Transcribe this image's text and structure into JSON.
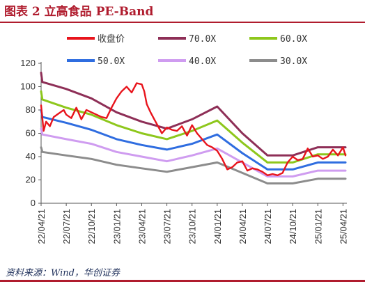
{
  "header": {
    "title": "图表 2 立高食品 PE-Band"
  },
  "footer": {
    "source": "资料来源：Wind，华创证券"
  },
  "colors": {
    "title_red": "#b01c2e",
    "price": "#e8141c",
    "pe70": "#8e2f57",
    "pe60": "#8ec71c",
    "pe50": "#2f6de0",
    "pe40": "#cf9cf0",
    "pe30": "#8c8c8c"
  },
  "chart_data": {
    "type": "line",
    "ylim": [
      0,
      120
    ],
    "yticks": [
      0,
      20,
      40,
      60,
      80,
      100,
      120
    ],
    "xtick_labels": [
      "22/04/21",
      "22/07/21",
      "22/10/21",
      "23/01/21",
      "23/04/21",
      "23/07/21",
      "23/10/21",
      "24/01/21",
      "24/04/21",
      "24/07/21",
      "24/10/21",
      "25/01/21",
      "25/04/21"
    ],
    "x_range": [
      0,
      12.1
    ],
    "legend_position": "top",
    "series": [
      {
        "name": "收盘价",
        "color": "#e8141c",
        "width": 2.4,
        "x": [
          0,
          0.1,
          0.2,
          0.35,
          0.5,
          0.7,
          0.9,
          1.0,
          1.2,
          1.4,
          1.6,
          1.8,
          2.0,
          2.2,
          2.4,
          2.6,
          2.8,
          3.0,
          3.2,
          3.4,
          3.6,
          3.8,
          4.0,
          4.1,
          4.2,
          4.35,
          4.5,
          4.6,
          4.8,
          5.0,
          5.2,
          5.4,
          5.6,
          5.8,
          6.0,
          6.2,
          6.4,
          6.6,
          6.8,
          7.0,
          7.2,
          7.4,
          7.6,
          7.8,
          8.0,
          8.2,
          8.4,
          8.6,
          8.8,
          9.0,
          9.2,
          9.4,
          9.6,
          9.8,
          10.0,
          10.2,
          10.4,
          10.6,
          10.8,
          11.0,
          11.2,
          11.4,
          11.6,
          11.8,
          12.0,
          12.1
        ],
        "y": [
          84,
          62,
          70,
          66,
          74,
          77,
          80,
          76,
          73,
          82,
          72,
          80,
          78,
          76,
          74,
          73,
          82,
          90,
          96,
          100,
          95,
          103,
          102,
          96,
          85,
          78,
          72,
          68,
          60,
          65,
          63,
          62,
          66,
          58,
          67,
          60,
          55,
          50,
          48,
          45,
          38,
          29,
          31,
          35,
          36,
          28,
          30,
          29,
          27,
          24,
          25,
          24,
          26,
          35,
          40,
          37,
          38,
          47,
          40,
          41,
          38,
          40,
          46,
          41,
          48,
          41
        ]
      },
      {
        "name": "70.0X",
        "color": "#8e2f57",
        "width": 3,
        "x": [
          0,
          0.05,
          1.0,
          2.0,
          3.0,
          4.0,
          5.0,
          6.0,
          7.0,
          8.0,
          9.0,
          10.0,
          11.0,
          12.1
        ],
        "y": [
          112,
          104,
          98,
          90,
          78,
          70,
          64,
          72,
          83,
          60,
          41,
          41,
          48,
          48
        ]
      },
      {
        "name": "60.0X",
        "color": "#8ec71c",
        "width": 3,
        "x": [
          0,
          0.05,
          1.0,
          2.0,
          3.0,
          4.0,
          5.0,
          6.0,
          7.0,
          8.0,
          9.0,
          10.0,
          11.0,
          12.1
        ],
        "y": [
          96,
          89,
          82,
          76,
          67,
          60,
          55,
          62,
          71,
          52,
          35,
          35,
          42,
          42
        ]
      },
      {
        "name": "50.0X",
        "color": "#2f6de0",
        "width": 3,
        "x": [
          0,
          0.05,
          1.0,
          2.0,
          3.0,
          4.0,
          5.0,
          6.0,
          7.0,
          8.0,
          9.0,
          10.0,
          11.0,
          12.1
        ],
        "y": [
          80,
          74,
          69,
          63,
          55,
          50,
          46,
          51,
          59,
          43,
          29,
          29,
          35,
          35
        ]
      },
      {
        "name": "40.0X",
        "color": "#cf9cf0",
        "width": 3,
        "x": [
          0,
          0.05,
          1.0,
          2.0,
          3.0,
          4.0,
          5.0,
          6.0,
          7.0,
          8.0,
          9.0,
          10.0,
          11.0,
          12.1
        ],
        "y": [
          64,
          59,
          55,
          51,
          44,
          40,
          36,
          41,
          47,
          35,
          23,
          23,
          28,
          28
        ]
      },
      {
        "name": "30.0X",
        "color": "#8c8c8c",
        "width": 3,
        "x": [
          0,
          0.05,
          1.0,
          2.0,
          3.0,
          4.0,
          5.0,
          6.0,
          7.0,
          8.0,
          9.0,
          10.0,
          11.0,
          12.1
        ],
        "y": [
          48,
          44,
          41,
          38,
          33,
          30,
          27,
          31,
          35,
          26,
          17,
          17,
          21,
          21
        ]
      }
    ]
  }
}
